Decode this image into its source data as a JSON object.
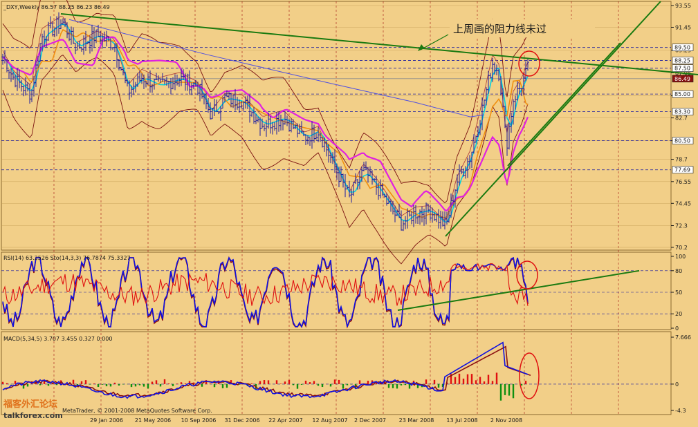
{
  "chart_data": [
    {
      "panel": "price",
      "type": "line",
      "header": "_DXY,Weekly  86.57 88.25 86.23 86.49",
      "x": [
        "29 Jan 2006",
        "21 May 2006",
        "10 Sep 2006",
        "31 Dec 2006",
        "22 Apr 2007",
        "12 Aug 2007",
        "2 Dec 2007",
        "23 Mar 2008",
        "13 Jul 2008",
        "2 Nov 2008"
      ],
      "y_ticks": [
        93.55,
        91.45,
        89.25,
        87.05,
        84.85,
        82.7,
        80.5,
        78.7,
        76.55,
        74.45,
        72.3,
        70.2
      ],
      "ylim": [
        70.2,
        93.55
      ],
      "price_boxes": [
        {
          "label": "89.50",
          "bg": "#ffffff",
          "fg": "#1a1a1a"
        },
        {
          "label": "88.25",
          "bg": "#ffffff",
          "fg": "#1a1a1a"
        },
        {
          "label": "87.50",
          "bg": "#ffffff",
          "fg": "#1a1a1a"
        },
        {
          "label": "86.49",
          "bg": "#8b1010",
          "fg": "#ffffff"
        },
        {
          "label": "85.00",
          "bg": "#ffffff",
          "fg": "#1a1a1a"
        },
        {
          "label": "83.30",
          "bg": "#ffffff",
          "fg": "#1a1a1a"
        },
        {
          "label": "80.50",
          "bg": "#ffffff",
          "fg": "#1a1a1a"
        },
        {
          "label": "77.69",
          "bg": "#ffffff",
          "fg": "#1a1a1a"
        }
      ],
      "annotation": "上周画的阻力线未过",
      "colors": {
        "candles": "#1a1aa0",
        "ma_fast": "#00d0e0",
        "ma_mid": "#f09010",
        "ma_slow": "#e020e0",
        "ma_long": "#5050e0",
        "bands": "#7a1010",
        "trendline": "#1a7a10"
      }
    },
    {
      "panel": "rsi",
      "type": "line",
      "header": "RSI(14) 63.2526  Sto(14,3,3) 76.7874 75.3327",
      "y_ticks": [
        100,
        80,
        50,
        20,
        0
      ],
      "ylim": [
        0,
        100
      ],
      "series_colors": {
        "rsi": "#e01010",
        "sto_main": "#1010e0",
        "sto_signal": "#8b1010"
      }
    },
    {
      "panel": "macd",
      "type": "bar",
      "header": "MACD(5,34,5) 3.707 3.455 0.327 0.000",
      "y_ticks": [
        7.666,
        0.0,
        -4.3
      ],
      "ylim": [
        -4.3,
        7.666
      ]
    }
  ],
  "watermark": {
    "cn": "福客外汇论坛",
    "en": "talkforex.com",
    "copyright": "MetaTrader, © 2001-2008 MetaQuotes Software Corp."
  }
}
